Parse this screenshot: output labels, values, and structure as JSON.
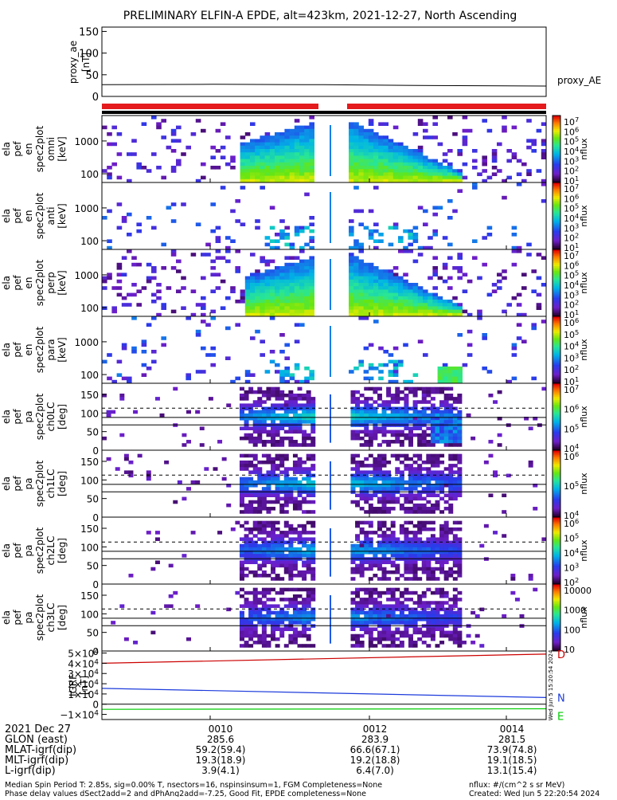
{
  "title": "PRELIMINARY ELFIN-A EPDE, alt=423km, 2021-12-27, North Ascending",
  "chart_data": {
    "type": "spectrogram",
    "title": "PRELIMINARY ELFIN-A EPDE, alt=423km, 2021-12-27, North Ascending",
    "panels": {
      "proxy_ae": {
        "ylabel": [
          "proxy_ae",
          "[nT]"
        ],
        "yticks": [
          "150",
          "100",
          "50",
          "0"
        ],
        "ylim": [
          0,
          160
        ],
        "series_label": "proxy_AE",
        "x": [
          "0006:50",
          "0009:00",
          "0011:00",
          "0013:00",
          "0014:40"
        ],
        "values": [
          27,
          28,
          27,
          25,
          24
        ]
      },
      "energy": [
        {
          "ylabel": [
            "ela",
            "pef",
            "en",
            "spec2plot",
            "omni",
            "[keV]"
          ],
          "yticks": [
            "1000",
            "100"
          ],
          "cbar": [
            "10^7",
            "10^6",
            "10^5",
            "10^4",
            "10^3",
            "10^2",
            "10^1"
          ],
          "cbar_label": "nflux"
        },
        {
          "ylabel": [
            "ela",
            "pef",
            "en",
            "spec2plot",
            "anti",
            "[keV]"
          ],
          "yticks": [
            "1000",
            "100"
          ],
          "cbar": [
            "10^7",
            "10^6",
            "10^5",
            "10^4",
            "10^3",
            "10^2",
            "10^1"
          ],
          "cbar_label": "nflux"
        },
        {
          "ylabel": [
            "ela",
            "pef",
            "en",
            "spec2plot",
            "perp",
            "[keV]"
          ],
          "yticks": [
            "1000",
            "100"
          ],
          "cbar": [
            "10^7",
            "10^6",
            "10^5",
            "10^4",
            "10^3",
            "10^2",
            "10^1"
          ],
          "cbar_label": "nflux"
        },
        {
          "ylabel": [
            "ela",
            "pef",
            "en",
            "spec2plot",
            "para",
            "[keV]"
          ],
          "yticks": [
            "1000",
            "100"
          ],
          "cbar": [
            "10^6",
            "10^5",
            "10^4",
            "10^3",
            "10^2",
            "10^1"
          ],
          "cbar_label": "nflux"
        }
      ],
      "pitch": [
        {
          "ylabel": [
            "ela",
            "pef",
            "pa",
            "spec2plot",
            "ch0LC",
            "[deg]"
          ],
          "yticks": [
            "150",
            "100",
            "50",
            "0"
          ],
          "cbar": [
            "10^7",
            "10^6",
            "10^5",
            "10^4"
          ],
          "cbar_label": "nflux"
        },
        {
          "ylabel": [
            "ela",
            "pef",
            "pa",
            "spec2plot",
            "ch1LC",
            "[deg]"
          ],
          "yticks": [
            "150",
            "100",
            "50",
            "0"
          ],
          "cbar": [
            "10^6",
            "10^5",
            "10^4"
          ],
          "cbar_label": "nflux"
        },
        {
          "ylabel": [
            "ela",
            "pef",
            "pa",
            "spec2plot",
            "ch2LC",
            "[deg]"
          ],
          "yticks": [
            "150",
            "100",
            "50",
            "0"
          ],
          "cbar": [
            "10^6",
            "10^5",
            "10^4",
            "10^3",
            "10^2"
          ],
          "cbar_label": "nflux"
        },
        {
          "ylabel": [
            "ela",
            "pef",
            "pa",
            "spec2plot",
            "ch3LC",
            "[deg]"
          ],
          "yticks": [
            "150",
            "100",
            "50",
            "0"
          ],
          "cbar": [
            "10000",
            "1000",
            "100",
            "10"
          ],
          "cbar_label": "nflux"
        }
      ],
      "bfield": {
        "ylabel": [
          "IGRF",
          "[nT]"
        ],
        "yticks": [
          "5×10^4",
          "4×10^4",
          "3×10^4",
          "2×10^4",
          "1×10^4",
          "0",
          "−1×10^4"
        ],
        "ylim": [
          -15000,
          52000
        ],
        "series": [
          {
            "name": "D",
            "color": "#cc0000",
            "values": [
              40000,
              49000
            ]
          },
          {
            "name": "N",
            "color": "#1c3bdb",
            "values": [
              15500,
              6500
            ]
          },
          {
            "name": "E",
            "color": "#00cc00",
            "values": [
              -5000,
              -4500
            ]
          }
        ],
        "side_text": "Wed Jun 5 15:20:54 2024"
      }
    },
    "x_ticks": [
      "0010",
      "0012",
      "0014"
    ],
    "orbit_rows": [
      {
        "label": "2021 Dec 27",
        "values": [
          "0010",
          "0012",
          "0014"
        ]
      },
      {
        "label": "GLON (east)",
        "values": [
          "285.6",
          "283.9",
          "281.5"
        ]
      },
      {
        "label": "MLAT-igrf(dip)",
        "values": [
          "59.2(59.4)",
          "66.6(67.1)",
          "73.9(74.8)"
        ]
      },
      {
        "label": "MLT-igrf(dip)",
        "values": [
          "19.3(18.9)",
          "19.2(18.8)",
          "19.1(18.5)"
        ]
      },
      {
        "label": "L-igrf(dip)",
        "values": [
          "3.9(4.1)",
          "6.4(7.0)",
          "13.1(15.4)"
        ]
      }
    ],
    "footer": {
      "line1": "Median Spin Period T: 2.85s, sig=0.00% T, nsectors=16, nspinsinsum=1, FGM Completeness=None",
      "line2": "Phase delay values dSect2add=2 and dPhAng2add=-7.25, Good Fit, EPDE completeness=None",
      "units": "nflux: #/(cm^2 s sr MeV)",
      "created": "Created: Wed Jun  5 22:20:54 2024"
    },
    "colors": {
      "bar_red": "#e41a1c",
      "bar_black": "#000000"
    }
  }
}
